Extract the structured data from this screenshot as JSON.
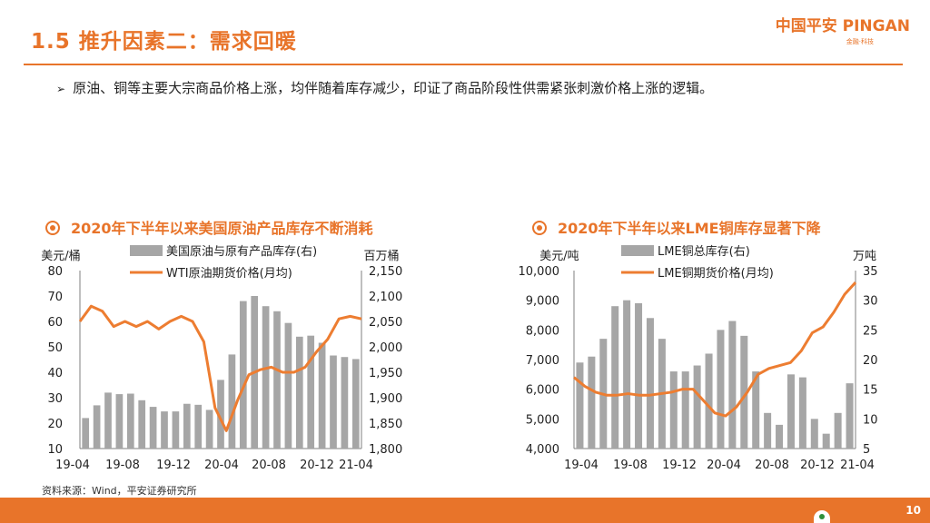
{
  "header": {
    "title": "1.5 推升因素二：需求回暖",
    "logo_main": "中国平安 PINGAN",
    "logo_sub": "金融·科技"
  },
  "bullet": {
    "text": "原油、铜等主要大宗商品价格上涨，均伴随着库存减少，印证了商品阶段性供需紧张刺激价格上涨的逻辑。"
  },
  "colors": {
    "accent": "#e8742a",
    "bar": "#a6a6a6",
    "line": "#ed7d31"
  },
  "chart_data": [
    {
      "type": "bar+line",
      "title": "2020年下半年以来美国原油产品库存不断消耗",
      "left_unit": "美元/桶",
      "right_unit": "百万桶",
      "legend": [
        "美国原油与原有产品库存(右)",
        "WTI原油期货价格(月均)"
      ],
      "x_ticks": [
        "19-04",
        "19-08",
        "19-12",
        "20-04",
        "20-08",
        "20-12",
        "21-04"
      ],
      "left_axis": {
        "min": 10,
        "max": 80,
        "step": 10,
        "ticks": [
          "10",
          "20",
          "30",
          "40",
          "50",
          "60",
          "70",
          "80"
        ]
      },
      "right_axis": {
        "min": 1800,
        "max": 2150,
        "step": 50,
        "ticks": [
          "1,800",
          "1,850",
          "1,900",
          "1,950",
          "2,000",
          "2,050",
          "2,100",
          "2,150"
        ]
      },
      "bars_right": [
        1860,
        1885,
        1910,
        1907,
        1908,
        1895,
        1882,
        1873,
        1873,
        1888,
        1886,
        1876,
        1935,
        1985,
        2090,
        2100,
        2080,
        2070,
        2047,
        2020,
        2022,
        2008,
        1983,
        1980,
        1976
      ],
      "line_left": [
        60,
        66,
        64,
        58,
        60,
        58,
        60,
        57,
        60,
        62,
        60,
        52,
        26,
        17,
        29,
        39,
        41,
        42,
        40,
        40,
        42,
        48,
        53,
        61,
        62,
        61
      ],
      "line_x_offset": 0.2
    },
    {
      "type": "bar+line",
      "title": "2020年下半年以来LME铜库存显著下降",
      "left_unit": "美元/吨",
      "right_unit": "万吨",
      "legend": [
        "LME铜总库存(右)",
        "LME铜期货价格(月均)"
      ],
      "x_ticks": [
        "19-04",
        "19-08",
        "19-12",
        "20-04",
        "20-08",
        "20-12",
        "21-04"
      ],
      "left_axis": {
        "min": 4000,
        "max": 10000,
        "step": 1000,
        "ticks": [
          "4,000",
          "5,000",
          "6,000",
          "7,000",
          "8,000",
          "9,000",
          "10,000"
        ]
      },
      "right_axis": {
        "min": 5,
        "max": 35,
        "step": 5,
        "ticks": [
          "5",
          "10",
          "15",
          "20",
          "25",
          "30",
          "35"
        ]
      },
      "bars_right": [
        19.5,
        20.5,
        23.5,
        29,
        30,
        29.5,
        27,
        23.5,
        18,
        18,
        19,
        21,
        25,
        26.5,
        24,
        18,
        11,
        9,
        17.5,
        17,
        10,
        7.5,
        11,
        16
      ],
      "line_left": [
        6400,
        6100,
        5900,
        5800,
        5800,
        5850,
        5800,
        5800,
        5850,
        5900,
        6000,
        6000,
        5600,
        5200,
        5100,
        5400,
        5900,
        6500,
        6700,
        6800,
        6900,
        7300,
        7900,
        8100,
        8600,
        9200,
        9600
      ],
      "line_x_offset": 0
    }
  ],
  "source": "资料来源：Wind，平安证券研究所",
  "page_number": "10"
}
